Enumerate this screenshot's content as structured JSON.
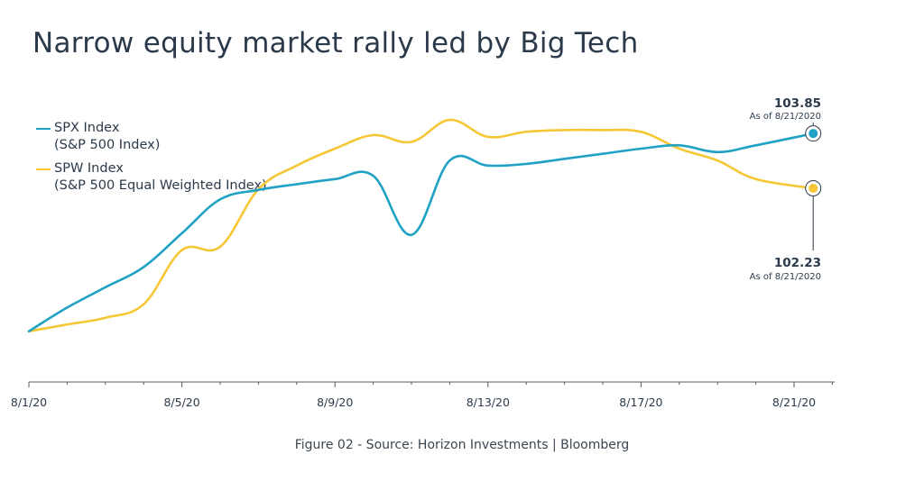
{
  "title": "Narrow equity market rally led by Big Tech",
  "caption": "Figure 02 - Source: Horizon Investments | Bloomberg",
  "legend": [
    {
      "line1": "SPX Index",
      "line2": "(S&P 500 Index)"
    },
    {
      "line1": "SPW Index",
      "line2": "(S&P 500 Equal Weighted Index)"
    }
  ],
  "colors": {
    "spx": "#1fa2c4",
    "spw": "#f6c735",
    "axis": "#555e66",
    "text": "#2b3a4a"
  },
  "end_labels": {
    "spx": {
      "value": "103.85",
      "asof": "As of 8/21/2020"
    },
    "spw": {
      "value": "102.23",
      "asof": "As of 8/21/2020"
    }
  },
  "chart_data": {
    "type": "line",
    "title": "Narrow equity market rally led by Big Tech",
    "x_tick_labels": [
      "8/1/20",
      "8/5/20",
      "8/9/20",
      "8/13/20",
      "8/17/20",
      "8/21/20"
    ],
    "x_ticks_days": [
      0,
      4,
      8,
      12,
      16,
      20
    ],
    "ylim": [
      96.5,
      105
    ],
    "grid": false,
    "legend_position": "top-left",
    "series": [
      {
        "name": "SPX Index (S&P 500 Index)",
        "color": "#1fa2c4",
        "x_days": [
          0,
          1,
          2,
          3,
          4,
          5,
          6,
          7,
          8,
          9,
          10,
          11,
          12,
          13,
          14,
          15,
          16,
          17,
          18,
          19,
          20.5
        ],
        "values": [
          98.0,
          98.7,
          99.3,
          99.9,
          100.9,
          101.9,
          102.18,
          102.35,
          102.5,
          102.6,
          100.85,
          103.05,
          102.9,
          102.95,
          103.1,
          103.25,
          103.4,
          103.5,
          103.3,
          103.5,
          103.85
        ]
      },
      {
        "name": "SPW Index (S&P 500 Equal Weighted Index)",
        "color": "#f6c735",
        "x_days": [
          0,
          1,
          2,
          3,
          4,
          5,
          6,
          7,
          8,
          9,
          10,
          11,
          12,
          13,
          14,
          15,
          16,
          17,
          18,
          19,
          20.5
        ],
        "values": [
          98.0,
          98.2,
          98.4,
          98.8,
          100.4,
          100.5,
          102.2,
          102.9,
          103.4,
          103.8,
          103.6,
          104.25,
          103.75,
          103.9,
          103.95,
          103.95,
          103.9,
          103.4,
          103.05,
          102.5,
          102.23
        ]
      }
    ]
  }
}
